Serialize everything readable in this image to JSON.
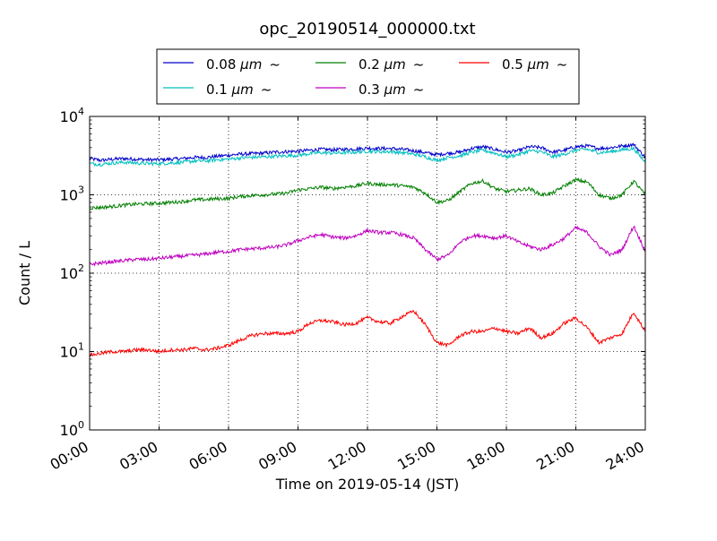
{
  "chart_data": {
    "type": "line",
    "title": "opc_20190514_000000.txt",
    "xlabel": "Time on 2019-05-14 (JST)",
    "ylabel": "Count / L",
    "x_unit": "hour",
    "xlim": [
      0,
      24
    ],
    "ylim": [
      1,
      10000
    ],
    "yscale": "log",
    "grid": true,
    "legend": "top-center",
    "x_ticks": [
      {
        "value": 0,
        "label": "00:00"
      },
      {
        "value": 3,
        "label": "03:00"
      },
      {
        "value": 6,
        "label": "06:00"
      },
      {
        "value": 9,
        "label": "09:00"
      },
      {
        "value": 12,
        "label": "12:00"
      },
      {
        "value": 15,
        "label": "15:00"
      },
      {
        "value": 18,
        "label": "18:00"
      },
      {
        "value": 21,
        "label": "21:00"
      },
      {
        "value": 24,
        "label": "24:00"
      }
    ],
    "y_ticks": [
      {
        "value": 1,
        "base": "10",
        "exp": "0"
      },
      {
        "value": 10,
        "base": "10",
        "exp": "1"
      },
      {
        "value": 100,
        "base": "10",
        "exp": "2"
      },
      {
        "value": 1000,
        "base": "10",
        "exp": "3"
      },
      {
        "value": 10000,
        "base": "10",
        "exp": "4"
      }
    ],
    "x": [
      0,
      0.5,
      1,
      1.5,
      2,
      2.5,
      3,
      3.5,
      4,
      4.5,
      5,
      5.5,
      6,
      6.5,
      7,
      7.5,
      8,
      8.5,
      9,
      9.5,
      10,
      10.5,
      11,
      11.5,
      12,
      12.5,
      13,
      13.5,
      14,
      14.5,
      15,
      15.5,
      16,
      16.5,
      17,
      17.5,
      18,
      18.5,
      19,
      19.5,
      20,
      20.5,
      21,
      21.5,
      22,
      22.5,
      23,
      23.5,
      24
    ],
    "series": [
      {
        "name": "0.08 μm ~",
        "label_main": "0.08 ",
        "label_unit": "μm",
        "label_tilde": "~",
        "color": "#0000cc",
        "values": [
          2900,
          2750,
          2850,
          2900,
          2850,
          2800,
          2800,
          2850,
          2900,
          3000,
          3000,
          3100,
          3200,
          3300,
          3350,
          3400,
          3500,
          3550,
          3600,
          3700,
          3800,
          3750,
          3800,
          3850,
          3950,
          3900,
          3900,
          3800,
          3650,
          3450,
          3250,
          3400,
          3500,
          3900,
          4100,
          3800,
          3500,
          3650,
          4100,
          4000,
          3500,
          3700,
          4100,
          4200,
          3900,
          4000,
          4200,
          4400,
          3000
        ]
      },
      {
        "name": "0.1 μm ~",
        "label_main": "0.1 ",
        "label_unit": "μm",
        "label_tilde": "~",
        "color": "#00bfbf",
        "values": [
          2500,
          2450,
          2550,
          2600,
          2550,
          2500,
          2500,
          2550,
          2600,
          2700,
          2700,
          2800,
          2850,
          2950,
          3000,
          3050,
          3100,
          3150,
          3200,
          3350,
          3450,
          3400,
          3450,
          3500,
          3600,
          3550,
          3550,
          3450,
          3300,
          3050,
          2750,
          3000,
          3150,
          3500,
          3700,
          3400,
          3050,
          3250,
          3650,
          3550,
          3050,
          3300,
          3700,
          3800,
          3450,
          3550,
          3750,
          3900,
          2600
        ]
      },
      {
        "name": "0.2 μm ~",
        "label_main": "0.2 ",
        "label_unit": "μm",
        "label_tilde": "~",
        "color": "#007f00",
        "values": [
          680,
          690,
          710,
          740,
          760,
          770,
          780,
          800,
          820,
          860,
          870,
          890,
          900,
          950,
          980,
          1000,
          1020,
          1050,
          1150,
          1200,
          1250,
          1200,
          1250,
          1300,
          1400,
          1350,
          1350,
          1300,
          1250,
          1050,
          800,
          850,
          1100,
          1400,
          1500,
          1200,
          1100,
          1150,
          1200,
          1000,
          1050,
          1300,
          1550,
          1450,
          1000,
          900,
          1000,
          1500,
          1000
        ]
      },
      {
        "name": "0.3 μm ~",
        "label_main": "0.3 ",
        "label_unit": "μm",
        "label_tilde": "~",
        "color": "#bf00bf",
        "values": [
          130,
          135,
          140,
          145,
          150,
          150,
          155,
          160,
          165,
          170,
          175,
          185,
          190,
          200,
          205,
          210,
          215,
          230,
          260,
          290,
          310,
          290,
          280,
          300,
          350,
          330,
          330,
          310,
          280,
          200,
          150,
          170,
          250,
          300,
          300,
          280,
          300,
          250,
          220,
          200,
          230,
          280,
          380,
          330,
          220,
          170,
          200,
          400,
          190
        ]
      },
      {
        "name": "0.5 μm ~",
        "label_main": "0.5 ",
        "label_unit": "μm",
        "label_tilde": "~",
        "color": "#ff0000",
        "values": [
          9,
          9.5,
          10,
          10,
          10.5,
          10.5,
          10,
          10.5,
          10.5,
          11,
          10.5,
          11,
          12,
          14,
          16,
          17,
          17,
          17,
          18,
          23,
          25,
          24,
          22,
          23,
          27,
          24,
          23,
          28,
          33,
          22,
          13,
          12,
          16,
          18,
          18,
          20,
          18,
          17,
          20,
          15,
          17,
          23,
          27,
          20,
          13,
          15,
          17,
          32,
          18
        ]
      }
    ]
  }
}
